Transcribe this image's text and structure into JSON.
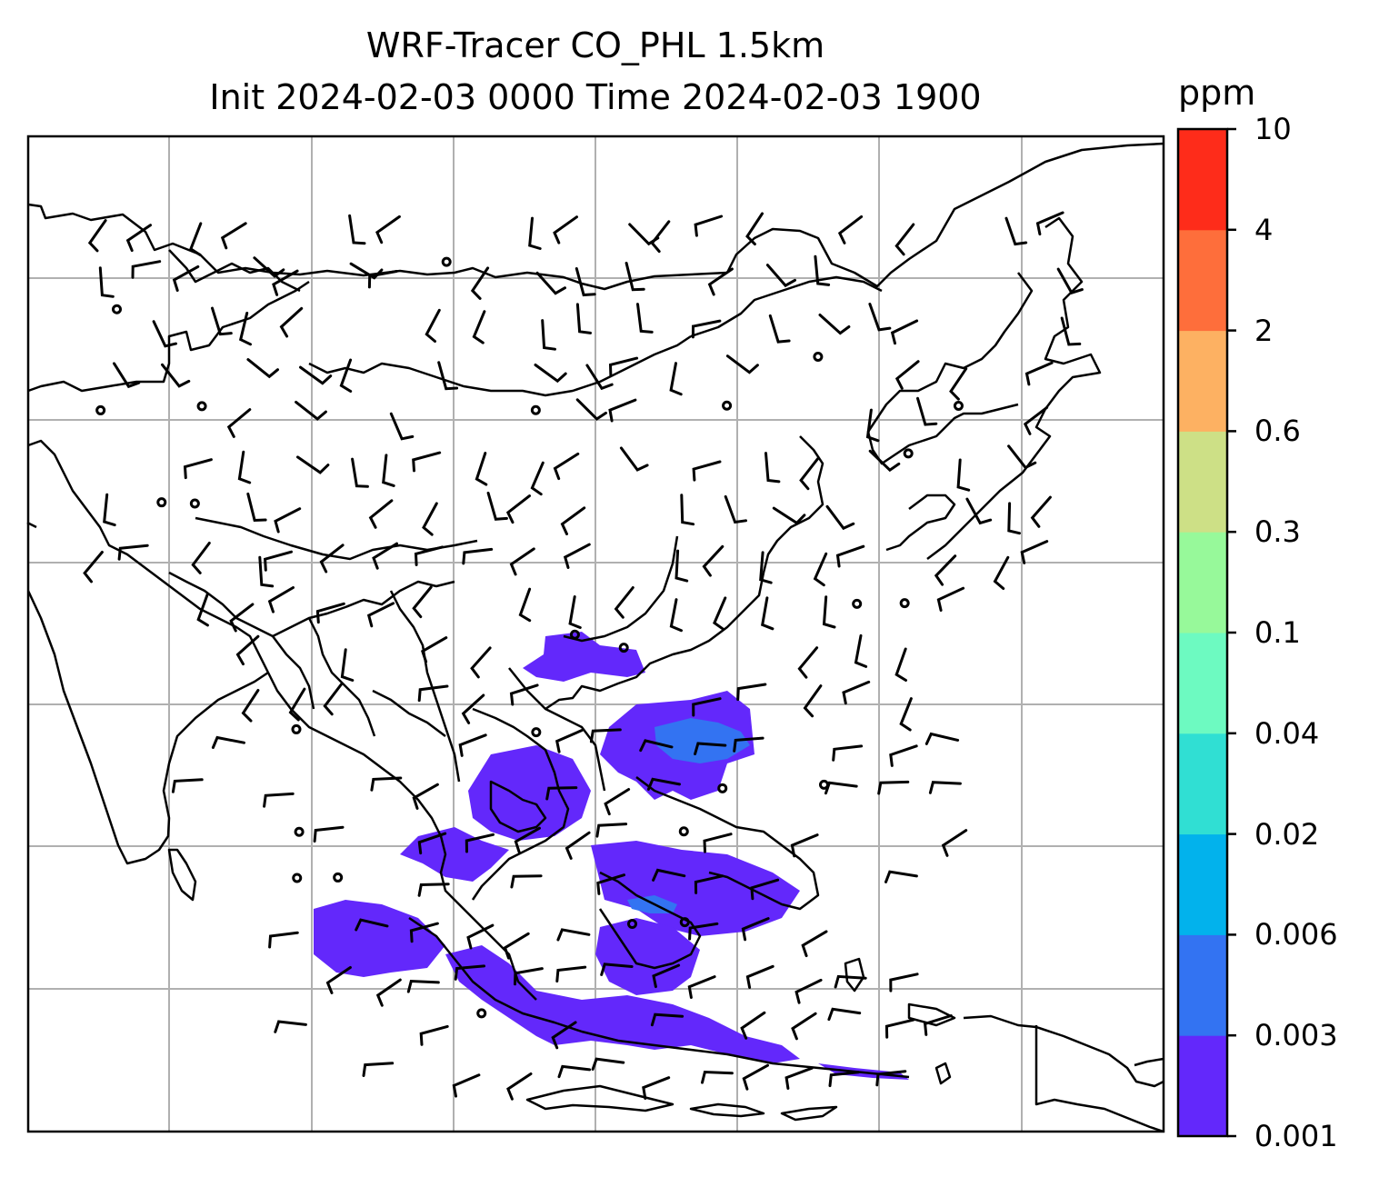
{
  "title": {
    "line1": "WRF-Tracer CO_PHL 1.5km",
    "line2": "Init 2024-02-03 0000 Time 2024-02-03 1900"
  },
  "colorbar": {
    "unit": "ppm",
    "levels": [
      "0.001",
      "0.003",
      "0.006",
      "0.02",
      "0.04",
      "0.1",
      "0.3",
      "0.6",
      "2",
      "4",
      "10"
    ],
    "colors": [
      "#6328fb",
      "#3373f2",
      "#02b2ec",
      "#30dfd3",
      "#6dfac1",
      "#97f99a",
      "#cde086",
      "#fdb162",
      "#fe6e3b",
      "#fe2c1a"
    ]
  },
  "map": {
    "background": "#ffffff",
    "gridline_color": "#b0b0b0",
    "coastline_color": "#000000",
    "tracer_fill_color": "#6328fb",
    "tracer_secondary_color": "#3373f2",
    "layers": [
      "coastlines",
      "country-borders",
      "gridlines",
      "wind-barbs",
      "tracer-concentration"
    ]
  }
}
